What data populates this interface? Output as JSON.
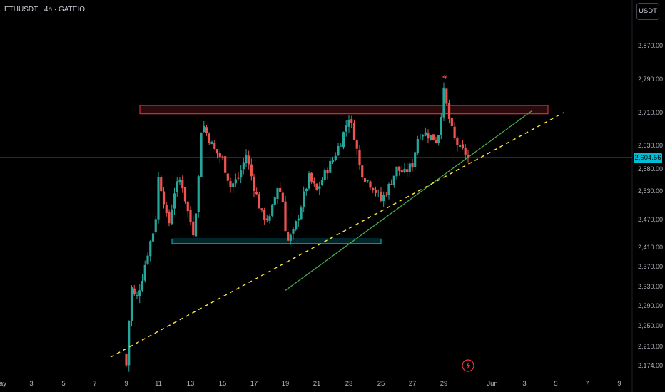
{
  "header": {
    "symbol": "ETHUSDT · 4h · GATEIO"
  },
  "currency_button": "USDT",
  "current_price": "2,604.56",
  "colors": {
    "up": "#26a69a",
    "down": "#ef5350",
    "background": "#000000",
    "trendline": "#4caf50",
    "support_zone": "#00bcd4",
    "resistance_zone": "#f23645",
    "dashed": "#ffeb3b"
  },
  "icons": {
    "alert": "lightning-icon"
  },
  "chart_data": {
    "type": "candlestick",
    "symbol": "ETHUSDT",
    "interval": "4h",
    "exchange": "GATEIO",
    "y_ticks": [
      "2,870.00",
      "2,790.00",
      "2,710.00",
      "2,630.00",
      "2,580.00",
      "2,530.00",
      "2,470.00",
      "2,410.00",
      "2,370.00",
      "2,330.00",
      "2,290.00",
      "2,250.00",
      "2,210.00",
      "2,174.00"
    ],
    "y_tick_values": [
      2870,
      2790,
      2710,
      2630,
      2580,
      2530,
      2470,
      2410,
      2370,
      2330,
      2290,
      2250,
      2210,
      2174
    ],
    "x_ticks": [
      "ay",
      "3",
      "5",
      "7",
      "9",
      "11",
      "13",
      "15",
      "17",
      "19",
      "21",
      "23",
      "25",
      "27",
      "29",
      "Jun",
      "3",
      "5",
      "7",
      "9"
    ],
    "x_tick_days": [
      1,
      3,
      5,
      7,
      9,
      11,
      13,
      15,
      17,
      19,
      21,
      23,
      25,
      27,
      29,
      32,
      34,
      36,
      38,
      40
    ],
    "last_price": 2604.56,
    "resistance_zone": [
      2707,
      2727
    ],
    "support_zone": [
      2418,
      2428
    ],
    "ascending_trendline": [
      [
        19.0,
        2322
      ],
      [
        34.5,
        2715
      ]
    ],
    "dashed_trendline": [
      [
        8.0,
        2190
      ],
      [
        36.5,
        2710
      ]
    ],
    "close_path": [
      [
        9.0,
        2175
      ],
      [
        9.3,
        2330
      ],
      [
        9.6,
        2300
      ],
      [
        10.0,
        2350
      ],
      [
        10.4,
        2410
      ],
      [
        10.8,
        2460
      ],
      [
        11.0,
        2560
      ],
      [
        11.3,
        2520
      ],
      [
        11.6,
        2450
      ],
      [
        12.0,
        2530
      ],
      [
        12.4,
        2560
      ],
      [
        12.8,
        2490
      ],
      [
        13.2,
        2440
      ],
      [
        13.5,
        2560
      ],
      [
        13.7,
        2690
      ],
      [
        14.1,
        2650
      ],
      [
        14.5,
        2620
      ],
      [
        15.0,
        2600
      ],
      [
        15.5,
        2540
      ],
      [
        16.0,
        2560
      ],
      [
        16.5,
        2610
      ],
      [
        17.0,
        2540
      ],
      [
        17.5,
        2480
      ],
      [
        18.0,
        2470
      ],
      [
        18.5,
        2540
      ],
      [
        18.8,
        2520
      ],
      [
        19.1,
        2420
      ],
      [
        19.5,
        2440
      ],
      [
        20.0,
        2500
      ],
      [
        20.5,
        2560
      ],
      [
        21.0,
        2530
      ],
      [
        21.5,
        2570
      ],
      [
        22.0,
        2600
      ],
      [
        22.5,
        2640
      ],
      [
        23.0,
        2700
      ],
      [
        23.3,
        2660
      ],
      [
        23.7,
        2580
      ],
      [
        24.0,
        2560
      ],
      [
        24.5,
        2540
      ],
      [
        25.0,
        2510
      ],
      [
        25.5,
        2540
      ],
      [
        26.0,
        2580
      ],
      [
        26.5,
        2570
      ],
      [
        27.0,
        2590
      ],
      [
        27.4,
        2660
      ],
      [
        27.8,
        2660
      ],
      [
        28.2,
        2650
      ],
      [
        28.6,
        2640
      ],
      [
        29.0,
        2760
      ],
      [
        29.3,
        2700
      ],
      [
        29.6,
        2650
      ],
      [
        30.0,
        2620
      ],
      [
        30.3,
        2615
      ],
      [
        30.6,
        2604.56
      ]
    ]
  }
}
